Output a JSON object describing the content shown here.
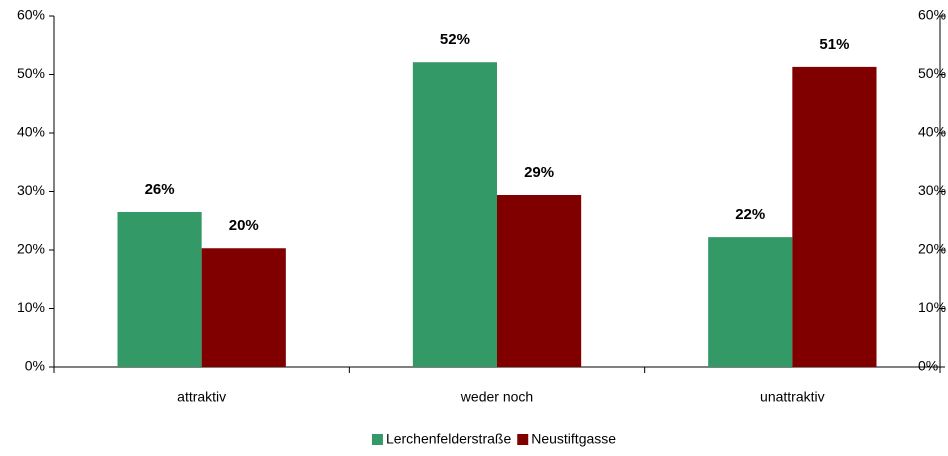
{
  "chart_data": {
    "type": "bar",
    "categories": [
      "attraktiv",
      "weder noch",
      "unattraktiv"
    ],
    "series": [
      {
        "name": "Lerchenfelderstraße",
        "color": "#339966",
        "values": [
          26.5,
          52.1,
          22.2
        ],
        "value_labels": [
          "26%",
          "52%",
          "22%"
        ]
      },
      {
        "name": "Neustiftgasse",
        "color": "#800000",
        "values": [
          20.3,
          29.4,
          51.3
        ],
        "value_labels": [
          "20%",
          "29%",
          "51%"
        ]
      }
    ],
    "ylim": [
      0,
      60
    ],
    "yticks": [
      {
        "value": 0,
        "label": "0%"
      },
      {
        "value": 10,
        "label": "10%"
      },
      {
        "value": 20,
        "label": "20%"
      },
      {
        "value": 30,
        "label": "30%"
      },
      {
        "value": 40,
        "label": "40%"
      },
      {
        "value": 50,
        "label": "50%"
      },
      {
        "value": 60,
        "label": "60%"
      }
    ],
    "y2lim": [
      0,
      60
    ],
    "y2ticks": [
      {
        "value": 0,
        "label": "0%"
      },
      {
        "value": 10,
        "label": "10%"
      },
      {
        "value": 20,
        "label": "20%"
      },
      {
        "value": 30,
        "label": "30%"
      },
      {
        "value": 40,
        "label": "40%"
      },
      {
        "value": 50,
        "label": "50%"
      },
      {
        "value": 60,
        "label": "60%"
      }
    ],
    "grid": false,
    "legend": "bottom"
  }
}
